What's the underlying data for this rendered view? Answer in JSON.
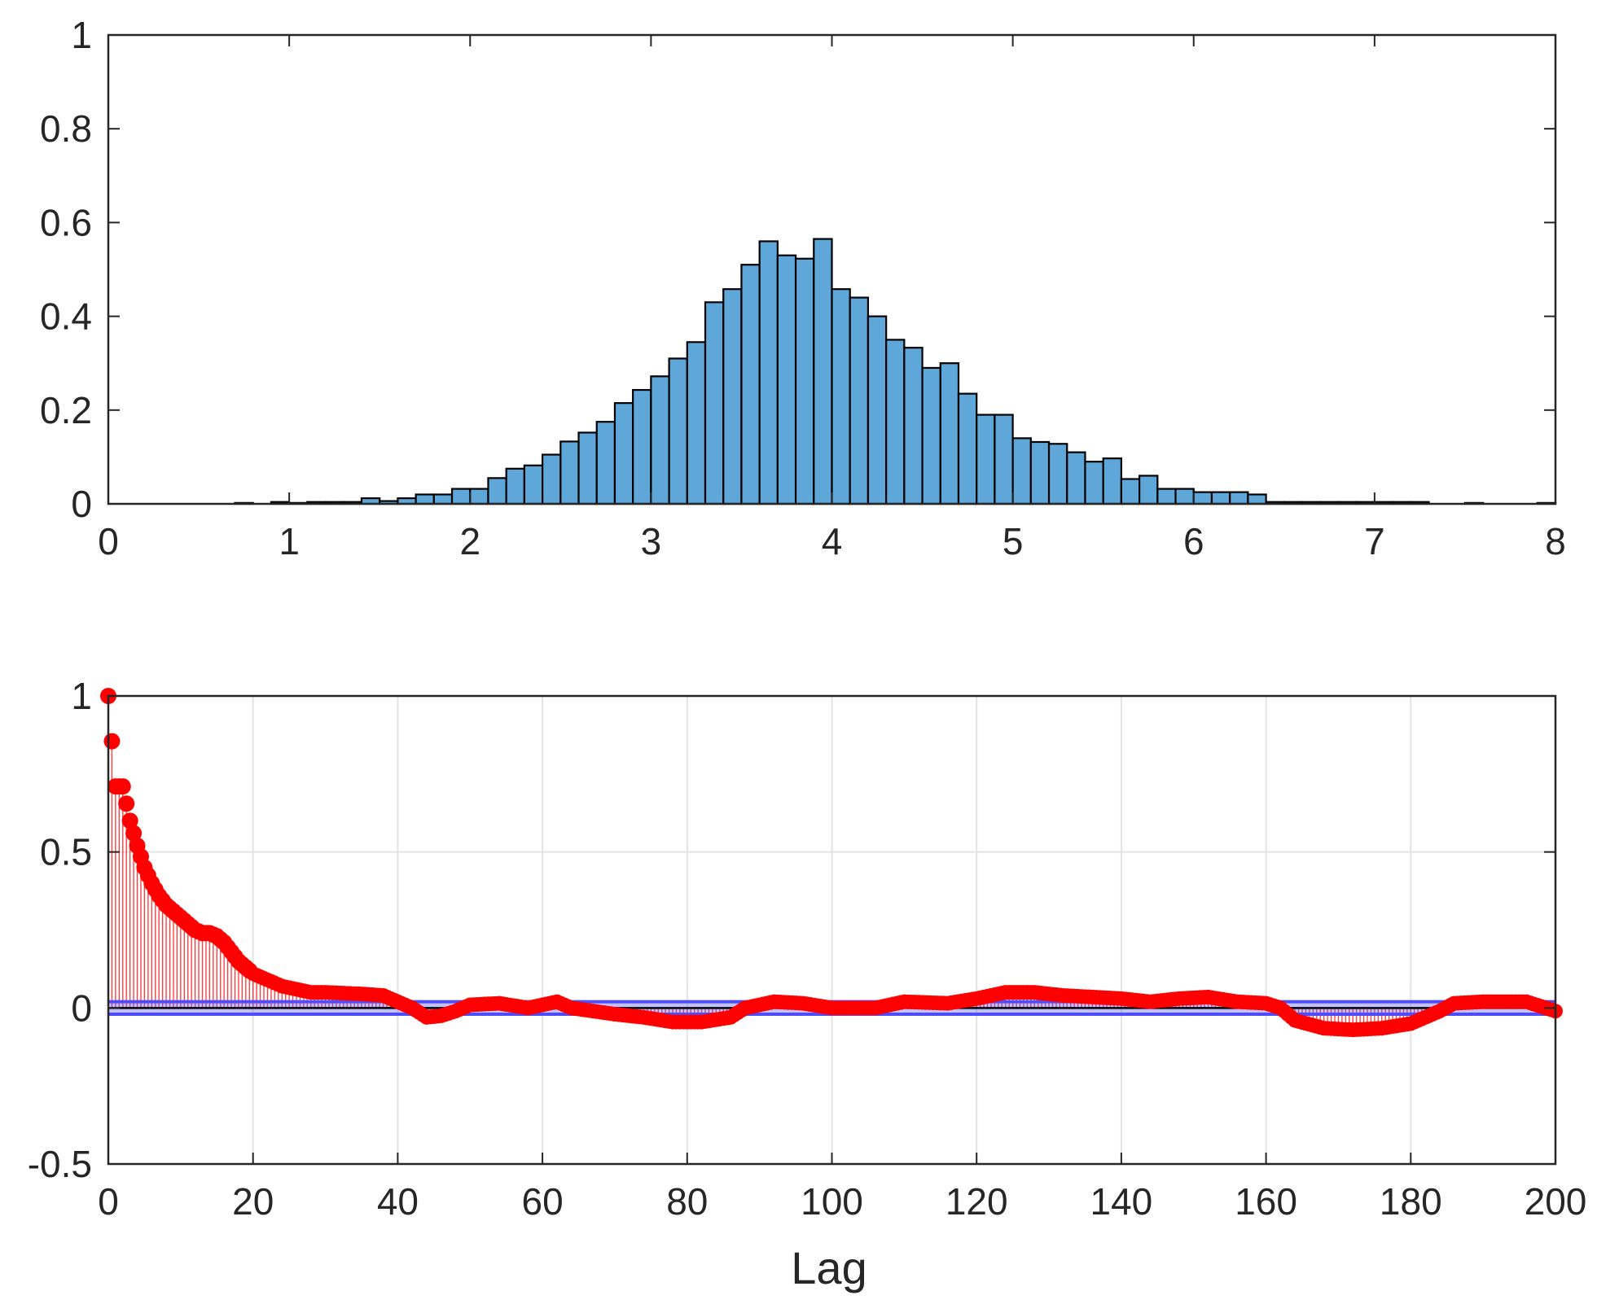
{
  "chart_data": [
    {
      "type": "bar",
      "subtype": "histogram",
      "title": "",
      "xlabel": "",
      "ylabel": "",
      "xlim": [
        0,
        8
      ],
      "ylim": [
        0,
        1
      ],
      "xticks": [
        "0",
        "1",
        "2",
        "3",
        "4",
        "5",
        "6",
        "7",
        "8"
      ],
      "yticks": [
        "0",
        "0.2",
        "0.4",
        "0.6",
        "0.8",
        "1"
      ],
      "grid": false,
      "bar_color": "#5ea7d8",
      "edge_color": "#000000",
      "bin_width": 0.1,
      "bins": [
        [
          0.7,
          0.002
        ],
        [
          0.8,
          0.0
        ],
        [
          0.9,
          0.004
        ],
        [
          1.0,
          0.002
        ],
        [
          1.1,
          0.004
        ],
        [
          1.2,
          0.004
        ],
        [
          1.3,
          0.004
        ],
        [
          1.4,
          0.012
        ],
        [
          1.5,
          0.006
        ],
        [
          1.6,
          0.012
        ],
        [
          1.7,
          0.02
        ],
        [
          1.8,
          0.02
        ],
        [
          1.9,
          0.032
        ],
        [
          2.0,
          0.032
        ],
        [
          2.1,
          0.055
        ],
        [
          2.2,
          0.075
        ],
        [
          2.3,
          0.082
        ],
        [
          2.4,
          0.105
        ],
        [
          2.5,
          0.133
        ],
        [
          2.6,
          0.152
        ],
        [
          2.7,
          0.175
        ],
        [
          2.8,
          0.215
        ],
        [
          2.9,
          0.243
        ],
        [
          3.0,
          0.272
        ],
        [
          3.1,
          0.31
        ],
        [
          3.2,
          0.345
        ],
        [
          3.3,
          0.43
        ],
        [
          3.4,
          0.458
        ],
        [
          3.5,
          0.51
        ],
        [
          3.6,
          0.56
        ],
        [
          3.7,
          0.53
        ],
        [
          3.8,
          0.523
        ],
        [
          3.9,
          0.565
        ],
        [
          4.0,
          0.458
        ],
        [
          4.1,
          0.44
        ],
        [
          4.2,
          0.4
        ],
        [
          4.3,
          0.35
        ],
        [
          4.4,
          0.333
        ],
        [
          4.5,
          0.29
        ],
        [
          4.6,
          0.3
        ],
        [
          4.7,
          0.235
        ],
        [
          4.8,
          0.19
        ],
        [
          4.9,
          0.19
        ],
        [
          5.0,
          0.14
        ],
        [
          5.1,
          0.132
        ],
        [
          5.2,
          0.128
        ],
        [
          5.3,
          0.11
        ],
        [
          5.4,
          0.09
        ],
        [
          5.5,
          0.097
        ],
        [
          5.6,
          0.053
        ],
        [
          5.7,
          0.06
        ],
        [
          5.8,
          0.032
        ],
        [
          5.9,
          0.032
        ],
        [
          6.0,
          0.025
        ],
        [
          6.1,
          0.025
        ],
        [
          6.2,
          0.025
        ],
        [
          6.3,
          0.02
        ],
        [
          6.4,
          0.004
        ],
        [
          6.5,
          0.004
        ],
        [
          6.6,
          0.004
        ],
        [
          6.7,
          0.004
        ],
        [
          6.8,
          0.004
        ],
        [
          6.9,
          0.004
        ],
        [
          7.0,
          0.004
        ],
        [
          7.1,
          0.004
        ],
        [
          7.2,
          0.004
        ],
        [
          7.3,
          0.0
        ],
        [
          7.4,
          0.0
        ],
        [
          7.5,
          0.002
        ],
        [
          7.6,
          0.0
        ],
        [
          7.7,
          0.0
        ],
        [
          7.8,
          0.0
        ],
        [
          7.9,
          0.002
        ]
      ]
    },
    {
      "type": "stem",
      "title": "",
      "xlabel": "Lag",
      "ylabel": "",
      "xlim": [
        0,
        200
      ],
      "ylim": [
        -0.5,
        1
      ],
      "xticks": [
        "0",
        "20",
        "40",
        "60",
        "80",
        "100",
        "120",
        "140",
        "160",
        "180",
        "200"
      ],
      "yticks": [
        "-0.5",
        "0",
        "0.5",
        "1"
      ],
      "grid": true,
      "stem_color": "#ff0000",
      "confidence_band": {
        "lower": -0.02,
        "upper": 0.02,
        "color": "#4d4dff"
      },
      "acf_keypoints": [
        [
          0,
          1.0
        ],
        [
          1,
          0.71
        ],
        [
          2,
          0.71
        ],
        [
          3,
          0.6
        ],
        [
          4,
          0.52
        ],
        [
          5,
          0.45
        ],
        [
          6,
          0.4
        ],
        [
          7,
          0.36
        ],
        [
          8,
          0.33
        ],
        [
          9,
          0.31
        ],
        [
          10,
          0.29
        ],
        [
          11,
          0.27
        ],
        [
          12,
          0.25
        ],
        [
          13,
          0.24
        ],
        [
          14,
          0.24
        ],
        [
          15,
          0.23
        ],
        [
          16,
          0.21
        ],
        [
          17,
          0.18
        ],
        [
          18,
          0.15
        ],
        [
          19,
          0.13
        ],
        [
          20,
          0.11
        ],
        [
          22,
          0.09
        ],
        [
          24,
          0.07
        ],
        [
          26,
          0.06
        ],
        [
          28,
          0.05
        ],
        [
          30,
          0.05
        ],
        [
          35,
          0.045
        ],
        [
          38,
          0.04
        ],
        [
          40,
          0.02
        ],
        [
          42,
          0.0
        ],
        [
          44,
          -0.03
        ],
        [
          46,
          -0.025
        ],
        [
          48,
          -0.01
        ],
        [
          50,
          0.01
        ],
        [
          54,
          0.015
        ],
        [
          58,
          0.0
        ],
        [
          62,
          0.02
        ],
        [
          64,
          0.0
        ],
        [
          70,
          -0.02
        ],
        [
          74,
          -0.03
        ],
        [
          78,
          -0.045
        ],
        [
          82,
          -0.045
        ],
        [
          86,
          -0.03
        ],
        [
          88,
          0.0
        ],
        [
          92,
          0.02
        ],
        [
          96,
          0.015
        ],
        [
          100,
          0.0
        ],
        [
          106,
          0.0
        ],
        [
          110,
          0.02
        ],
        [
          116,
          0.015
        ],
        [
          120,
          0.03
        ],
        [
          124,
          0.05
        ],
        [
          128,
          0.05
        ],
        [
          132,
          0.04
        ],
        [
          136,
          0.035
        ],
        [
          140,
          0.03
        ],
        [
          144,
          0.02
        ],
        [
          148,
          0.03
        ],
        [
          152,
          0.035
        ],
        [
          156,
          0.02
        ],
        [
          160,
          0.015
        ],
        [
          162,
          0.0
        ],
        [
          164,
          -0.04
        ],
        [
          168,
          -0.065
        ],
        [
          172,
          -0.07
        ],
        [
          176,
          -0.065
        ],
        [
          180,
          -0.05
        ],
        [
          182,
          -0.03
        ],
        [
          184,
          -0.01
        ],
        [
          186,
          0.015
        ],
        [
          190,
          0.02
        ],
        [
          196,
          0.02
        ],
        [
          200,
          -0.01
        ]
      ]
    }
  ]
}
